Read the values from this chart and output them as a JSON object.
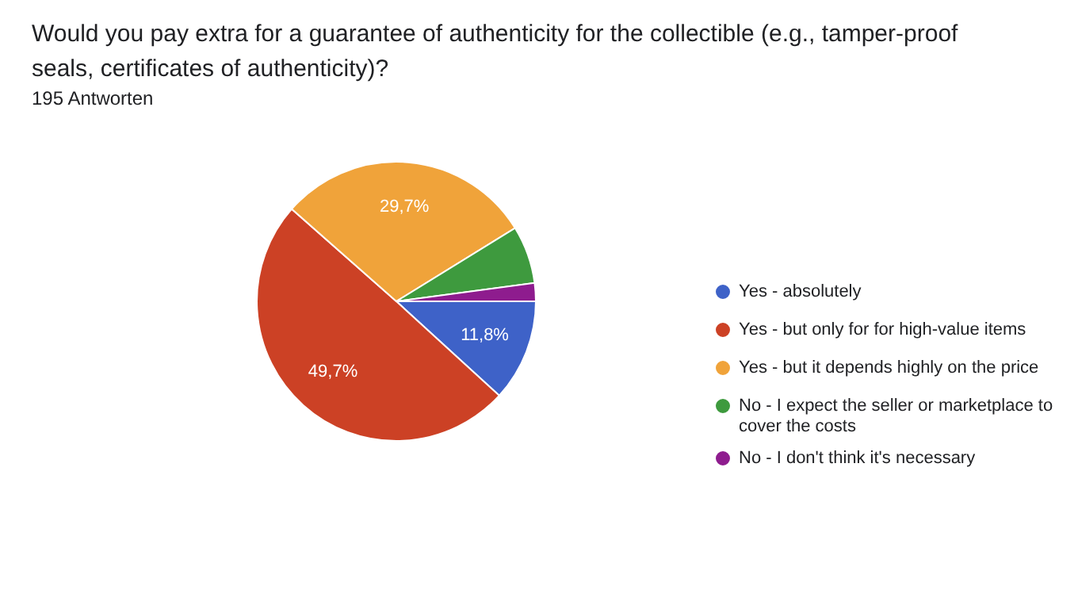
{
  "chart_data": {
    "type": "pie",
    "title": "Would you pay extra for a guarantee of authenticity for the collectible (e.g., tamper-proof seals, certificates of authenticity)?",
    "subtitle": "195 Antworten",
    "categories": [
      "Yes - absolutely",
      "Yes - but only for for high-value items",
      "Yes - but it depends highly on the price",
      "No - I expect the seller or marketplace to cover the costs",
      "No - I don't think it's necessary"
    ],
    "values": [
      11.8,
      49.7,
      29.7,
      6.7,
      2.1
    ],
    "value_labels": [
      "11,8%",
      "49,7%",
      "29,7%",
      null,
      null
    ],
    "colors": [
      "#3e62c8",
      "#cc4125",
      "#f0a33a",
      "#3e9a3e",
      "#8e1c8e"
    ],
    "legend": "right"
  }
}
